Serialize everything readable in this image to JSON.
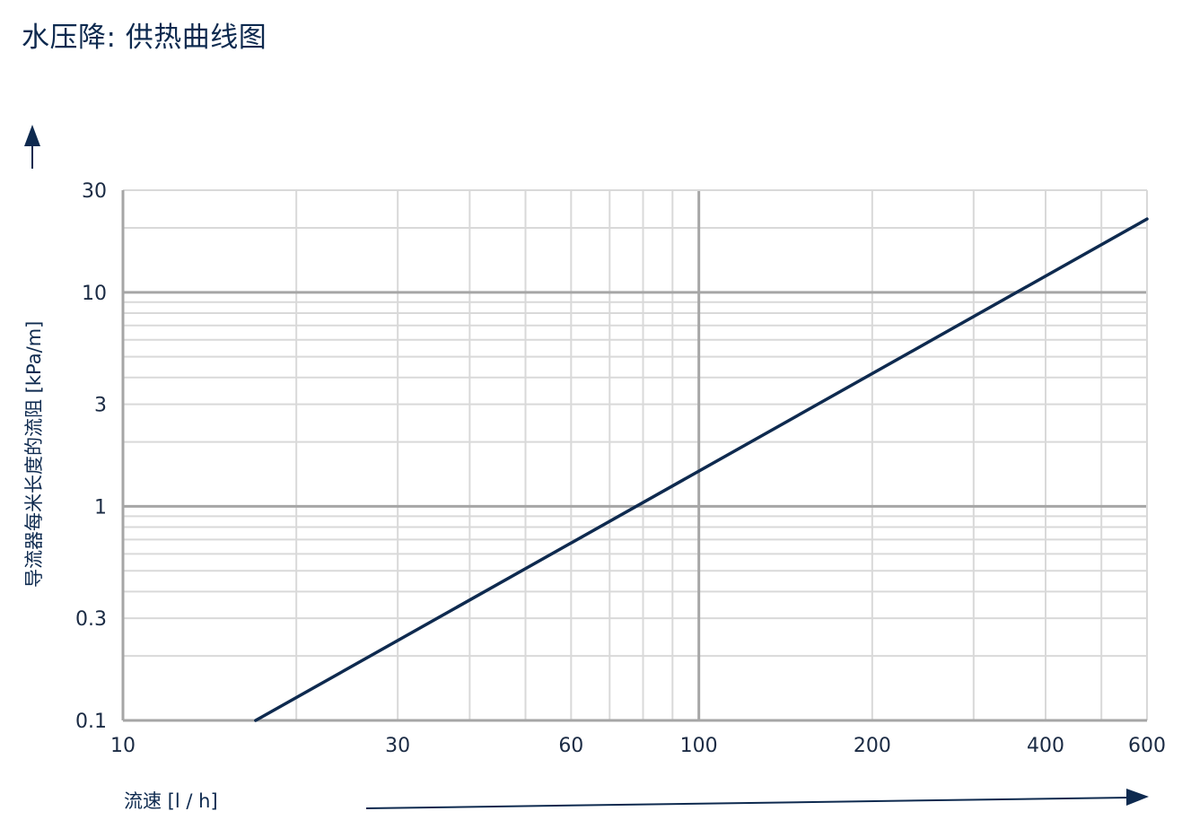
{
  "title": "水压降: 供热曲线图",
  "colors": {
    "series": "#0e2a4f",
    "grid_major": "#a6a6a6",
    "grid_minor": "#d9d9d9",
    "text": "#1b2b44"
  },
  "chart_data": {
    "type": "line",
    "title": "水压降: 供热曲线图",
    "xlabel": "流速 [l / h]",
    "ylabel": "导流器每米长度的流阻 [kPa/m]",
    "x_scale": "log",
    "y_scale": "log",
    "xlim": [
      10,
      600
    ],
    "ylim": [
      0.1,
      30
    ],
    "x_ticks": [
      10,
      30,
      60,
      100,
      200,
      400,
      600
    ],
    "x_tick_labels": [
      "10",
      "30",
      "60",
      "100",
      "200",
      "400",
      "600"
    ],
    "y_ticks": [
      0.1,
      0.3,
      1,
      3,
      10,
      30
    ],
    "y_tick_labels": [
      "0.1",
      "0.3",
      "1",
      "3",
      "10",
      "30"
    ],
    "grid": true,
    "legend": "none",
    "series": [
      {
        "x": [
          17,
          600
        ],
        "y": [
          0.1,
          22
        ]
      }
    ]
  }
}
